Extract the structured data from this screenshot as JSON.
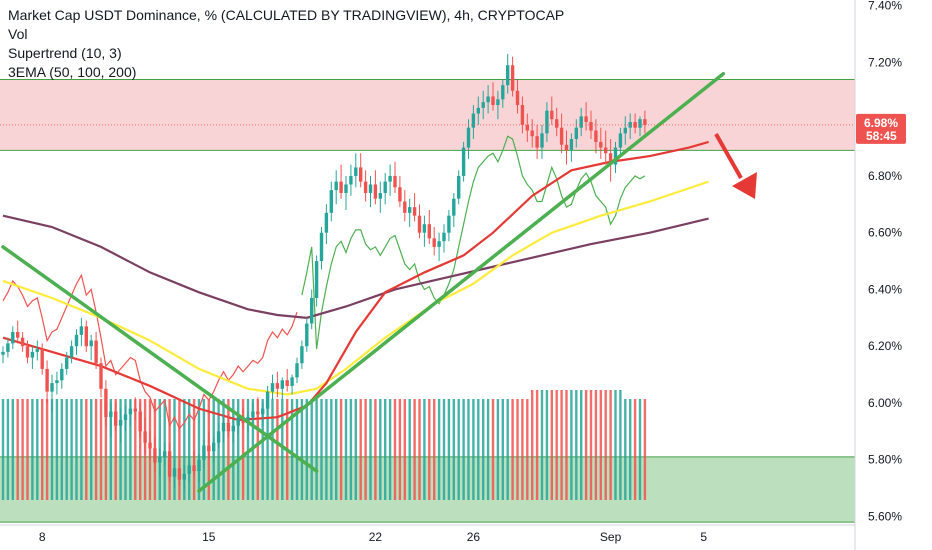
{
  "chart_data": {
    "type": "candlestick",
    "title": "Market Cap USDT Dominance, % (CALCULATED BY TRADINGVIEW), 4h, CRYPTOCAP",
    "indicators": [
      "Vol",
      "Supertrend (10, 3)",
      "3EMA (50, 100, 200)"
    ],
    "y_axis": {
      "ticks": [
        "7.40%",
        "7.20%",
        "7.00%",
        "6.80%",
        "6.60%",
        "6.40%",
        "6.20%",
        "6.00%",
        "5.80%",
        "5.60%"
      ],
      "tick_values": [
        7.4,
        7.2,
        7.0,
        6.8,
        6.6,
        6.4,
        6.2,
        6.0,
        5.8,
        5.6
      ],
      "ylim": [
        5.57,
        7.42
      ]
    },
    "x_axis": {
      "ticks": [
        "8",
        "15",
        "22",
        "26",
        "Sep",
        "5"
      ],
      "tick_bar_index": [
        8,
        42,
        76,
        96,
        124,
        143
      ]
    },
    "current_price": "6.98%",
    "countdown": "58:45",
    "zones": [
      {
        "name": "resistance",
        "from": 6.89,
        "to": 7.14,
        "color": "#f7c5c8"
      },
      {
        "name": "support",
        "from": 5.58,
        "to": 5.81,
        "color": "#a5d6a7"
      }
    ],
    "trendlines": [
      {
        "from": [
          0,
          6.55
        ],
        "to": [
          64,
          5.76
        ],
        "color": "#4caf50"
      },
      {
        "from": [
          40,
          5.69
        ],
        "to": [
          147,
          7.16
        ],
        "color": "#4caf50"
      }
    ],
    "ema50": [
      [
        0,
        6.23
      ],
      [
        10,
        6.18
      ],
      [
        20,
        6.13
      ],
      [
        30,
        6.06
      ],
      [
        40,
        5.98
      ],
      [
        48,
        5.94
      ],
      [
        56,
        5.95
      ],
      [
        62,
        5.99
      ],
      [
        66,
        6.07
      ],
      [
        72,
        6.25
      ],
      [
        78,
        6.39
      ],
      [
        86,
        6.46
      ],
      [
        94,
        6.52
      ],
      [
        100,
        6.6
      ],
      [
        108,
        6.73
      ],
      [
        116,
        6.82
      ],
      [
        124,
        6.85
      ],
      [
        132,
        6.87
      ],
      [
        140,
        6.9
      ],
      [
        144,
        6.92
      ]
    ],
    "ema100": [
      [
        0,
        6.43
      ],
      [
        10,
        6.37
      ],
      [
        20,
        6.3
      ],
      [
        30,
        6.22
      ],
      [
        40,
        6.12
      ],
      [
        50,
        6.05
      ],
      [
        58,
        6.03
      ],
      [
        64,
        6.05
      ],
      [
        70,
        6.12
      ],
      [
        78,
        6.23
      ],
      [
        88,
        6.35
      ],
      [
        96,
        6.42
      ],
      [
        104,
        6.52
      ],
      [
        112,
        6.6
      ],
      [
        122,
        6.66
      ],
      [
        132,
        6.71
      ],
      [
        144,
        6.78
      ]
    ],
    "ema200": [
      [
        0,
        6.66
      ],
      [
        10,
        6.62
      ],
      [
        20,
        6.55
      ],
      [
        30,
        6.46
      ],
      [
        40,
        6.39
      ],
      [
        50,
        6.33
      ],
      [
        56,
        6.31
      ],
      [
        62,
        6.3
      ],
      [
        70,
        6.34
      ],
      [
        80,
        6.4
      ],
      [
        90,
        6.44
      ],
      [
        100,
        6.48
      ],
      [
        110,
        6.52
      ],
      [
        120,
        6.56
      ],
      [
        132,
        6.6
      ],
      [
        144,
        6.65
      ]
    ],
    "ohlc": [
      [
        6.17,
        6.2,
        6.14,
        6.18
      ],
      [
        6.18,
        6.23,
        6.16,
        6.21
      ],
      [
        6.21,
        6.27,
        6.19,
        6.25
      ],
      [
        6.25,
        6.29,
        6.21,
        6.23
      ],
      [
        6.23,
        6.25,
        6.18,
        6.2
      ],
      [
        6.2,
        6.22,
        6.14,
        6.16
      ],
      [
        6.16,
        6.2,
        6.12,
        6.18
      ],
      [
        6.18,
        6.22,
        6.15,
        6.19
      ],
      [
        6.19,
        6.21,
        6.1,
        6.12
      ],
      [
        6.12,
        6.15,
        6.0,
        6.04
      ],
      [
        6.04,
        6.1,
        5.97,
        6.07
      ],
      [
        6.07,
        6.11,
        6.03,
        6.08
      ],
      [
        6.08,
        6.14,
        6.05,
        6.12
      ],
      [
        6.12,
        6.18,
        6.1,
        6.16
      ],
      [
        6.16,
        6.22,
        6.14,
        6.2
      ],
      [
        6.2,
        6.26,
        6.17,
        6.24
      ],
      [
        6.24,
        6.3,
        6.2,
        6.27
      ],
      [
        6.27,
        6.29,
        6.18,
        6.2
      ],
      [
        6.2,
        6.24,
        6.15,
        6.22
      ],
      [
        6.22,
        6.25,
        6.12,
        6.14
      ],
      [
        6.14,
        6.16,
        6.02,
        6.05
      ],
      [
        6.05,
        6.08,
        5.92,
        5.95
      ],
      [
        5.95,
        6.0,
        5.88,
        5.97
      ],
      [
        5.97,
        6.0,
        5.9,
        5.92
      ],
      [
        5.92,
        5.98,
        5.86,
        5.94
      ],
      [
        5.94,
        5.99,
        5.9,
        5.96
      ],
      [
        5.96,
        6.01,
        5.92,
        5.98
      ],
      [
        5.98,
        6.02,
        5.94,
        5.97
      ],
      [
        5.97,
        6.0,
        5.88,
        5.9
      ],
      [
        5.9,
        5.95,
        5.82,
        5.86
      ],
      [
        5.86,
        5.9,
        5.8,
        5.84
      ],
      [
        5.84,
        5.88,
        5.76,
        5.79
      ],
      [
        5.79,
        5.84,
        5.74,
        5.81
      ],
      [
        5.81,
        5.86,
        5.78,
        5.83
      ],
      [
        5.83,
        5.86,
        5.72,
        5.74
      ],
      [
        5.74,
        5.8,
        5.7,
        5.77
      ],
      [
        5.77,
        5.8,
        5.71,
        5.73
      ],
      [
        5.73,
        5.78,
        5.69,
        5.75
      ],
      [
        5.75,
        5.8,
        5.72,
        5.78
      ],
      [
        5.78,
        5.83,
        5.74,
        5.76
      ],
      [
        5.76,
        5.82,
        5.72,
        5.8
      ],
      [
        5.8,
        5.87,
        5.77,
        5.85
      ],
      [
        5.85,
        5.9,
        5.8,
        5.83
      ],
      [
        5.83,
        5.88,
        5.79,
        5.86
      ],
      [
        5.86,
        5.93,
        5.84,
        5.9
      ],
      [
        5.9,
        5.96,
        5.86,
        5.93
      ],
      [
        5.93,
        5.96,
        5.88,
        5.9
      ],
      [
        5.9,
        5.94,
        5.86,
        5.92
      ],
      [
        5.92,
        5.97,
        5.89,
        5.95
      ],
      [
        5.95,
        5.98,
        5.91,
        5.93
      ],
      [
        5.93,
        5.97,
        5.9,
        5.95
      ],
      [
        5.95,
        6.0,
        5.92,
        5.97
      ],
      [
        5.97,
        6.02,
        5.94,
        5.96
      ],
      [
        5.96,
        6.0,
        5.92,
        5.98
      ],
      [
        5.98,
        6.06,
        5.96,
        6.04
      ],
      [
        6.04,
        6.1,
        6.01,
        6.07
      ],
      [
        6.07,
        6.11,
        6.02,
        6.05
      ],
      [
        6.05,
        6.09,
        6.01,
        6.08
      ],
      [
        6.08,
        6.12,
        6.04,
        6.06
      ],
      [
        6.06,
        6.1,
        6.03,
        6.09
      ],
      [
        6.09,
        6.16,
        6.07,
        6.14
      ],
      [
        6.14,
        6.22,
        6.12,
        6.2
      ],
      [
        6.2,
        6.3,
        6.18,
        6.28
      ],
      [
        6.28,
        6.4,
        6.26,
        6.37
      ],
      [
        6.37,
        6.52,
        6.34,
        6.5
      ],
      [
        6.5,
        6.62,
        6.47,
        6.6
      ],
      [
        6.6,
        6.7,
        6.56,
        6.67
      ],
      [
        6.67,
        6.78,
        6.64,
        6.75
      ],
      [
        6.75,
        6.82,
        6.7,
        6.78
      ],
      [
        6.78,
        6.84,
        6.72,
        6.74
      ],
      [
        6.74,
        6.8,
        6.68,
        6.77
      ],
      [
        6.77,
        6.84,
        6.73,
        6.8
      ],
      [
        6.8,
        6.88,
        6.76,
        6.83
      ],
      [
        6.83,
        6.88,
        6.76,
        6.78
      ],
      [
        6.78,
        6.82,
        6.71,
        6.74
      ],
      [
        6.74,
        6.8,
        6.69,
        6.77
      ],
      [
        6.77,
        6.82,
        6.7,
        6.72
      ],
      [
        6.72,
        6.78,
        6.67,
        6.74
      ],
      [
        6.74,
        6.81,
        6.7,
        6.78
      ],
      [
        6.78,
        6.84,
        6.73,
        6.8
      ],
      [
        6.8,
        6.85,
        6.74,
        6.76
      ],
      [
        6.76,
        6.8,
        6.69,
        6.71
      ],
      [
        6.71,
        6.75,
        6.64,
        6.67
      ],
      [
        6.67,
        6.72,
        6.62,
        6.69
      ],
      [
        6.69,
        6.74,
        6.64,
        6.66
      ],
      [
        6.66,
        6.7,
        6.58,
        6.6
      ],
      [
        6.6,
        6.66,
        6.55,
        6.63
      ],
      [
        6.63,
        6.68,
        6.56,
        6.58
      ],
      [
        6.58,
        6.62,
        6.52,
        6.55
      ],
      [
        6.55,
        6.6,
        6.5,
        6.57
      ],
      [
        6.57,
        6.63,
        6.53,
        6.6
      ],
      [
        6.6,
        6.68,
        6.57,
        6.66
      ],
      [
        6.66,
        6.74,
        6.62,
        6.72
      ],
      [
        6.72,
        6.82,
        6.7,
        6.8
      ],
      [
        6.8,
        6.92,
        6.78,
        6.9
      ],
      [
        6.9,
        7.0,
        6.86,
        6.97
      ],
      [
        6.97,
        7.05,
        6.93,
        7.02
      ],
      [
        7.02,
        7.08,
        6.98,
        7.04
      ],
      [
        7.04,
        7.1,
        7.0,
        7.06
      ],
      [
        7.06,
        7.12,
        7.02,
        7.08
      ],
      [
        7.08,
        7.13,
        7.03,
        7.05
      ],
      [
        7.05,
        7.1,
        7.0,
        7.07
      ],
      [
        7.07,
        7.14,
        7.04,
        7.12
      ],
      [
        7.12,
        7.23,
        7.09,
        7.19
      ],
      [
        7.19,
        7.22,
        7.08,
        7.1
      ],
      [
        7.1,
        7.14,
        7.02,
        7.05
      ],
      [
        7.05,
        7.08,
        6.95,
        6.98
      ],
      [
        6.98,
        7.02,
        6.92,
        6.96
      ],
      [
        6.96,
        7.0,
        6.9,
        6.94
      ],
      [
        6.94,
        6.98,
        6.86,
        6.9
      ],
      [
        6.9,
        6.98,
        6.86,
        6.95
      ],
      [
        6.95,
        7.06,
        6.92,
        7.03
      ],
      [
        7.03,
        7.08,
        6.98,
        7.0
      ],
      [
        7.0,
        7.04,
        6.94,
        6.97
      ],
      [
        6.97,
        7.02,
        6.88,
        6.91
      ],
      [
        6.91,
        6.96,
        6.84,
        6.89
      ],
      [
        6.89,
        6.95,
        6.85,
        6.93
      ],
      [
        6.93,
        7.0,
        6.9,
        6.97
      ],
      [
        6.97,
        7.04,
        6.94,
        7.01
      ],
      [
        7.01,
        7.06,
        6.96,
        6.99
      ],
      [
        6.99,
        7.03,
        6.93,
        6.96
      ],
      [
        6.96,
        7.0,
        6.88,
        6.92
      ],
      [
        6.92,
        6.97,
        6.86,
        6.9
      ],
      [
        6.9,
        6.96,
        6.84,
        6.88
      ],
      [
        6.88,
        6.93,
        6.78,
        6.84
      ],
      [
        6.84,
        6.92,
        6.81,
        6.9
      ],
      [
        6.9,
        6.97,
        6.87,
        6.95
      ],
      [
        6.95,
        7.01,
        6.91,
        6.97
      ],
      [
        6.97,
        7.02,
        6.93,
        6.99
      ],
      [
        6.99,
        7.02,
        6.95,
        6.97
      ],
      [
        6.97,
        7.01,
        6.94,
        7.0
      ],
      [
        7.0,
        7.03,
        6.95,
        6.98
      ]
    ],
    "colors": {
      "up": "#26a69a",
      "down": "#ef5350",
      "ema50": "#e53935",
      "ema100": "#ffeb3b",
      "ema200": "#7b3f61",
      "trendline": "#4caf50",
      "arrow": "#e53935",
      "price_tag": "#ef5350",
      "volume_up": "#26a69a",
      "volume_down": "#ef5350",
      "supertrend_up": "#4caf50",
      "supertrend_down": "#ef5350"
    }
  }
}
